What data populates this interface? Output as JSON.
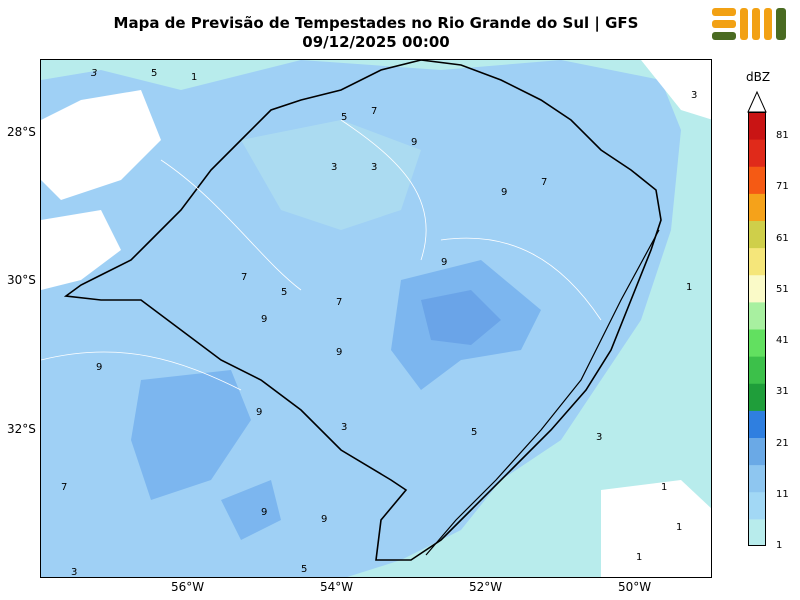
{
  "title": {
    "line1": "Mapa de Previsão de Tempestades no Rio Grande do Sul | GFS",
    "line2": "09/12/2025 00:00"
  },
  "colors": {
    "map_low": "#b8ecec",
    "map_mid": "#9fd0f5",
    "map_high": "#7cb6ef",
    "map_peak": "#6aa4e8",
    "border": "#000000",
    "logo_orange": "#f2a114",
    "logo_green": "#4a6b22"
  },
  "axes": {
    "lat_labels": [
      "28°S",
      "30°S",
      "32°S"
    ],
    "lon_labels": [
      "56°W",
      "54°W",
      "52°W",
      "50°W"
    ]
  },
  "colorbar": {
    "unit": "dBZ",
    "ticks": [
      "81",
      "71",
      "61",
      "51",
      "41",
      "31",
      "21",
      "11",
      "1"
    ],
    "colors": [
      "#b8ecec",
      "#a2d8f5",
      "#8ec6f0",
      "#6aa9e6",
      "#2f7fe0",
      "#1f9e3a",
      "#3cc04a",
      "#62e060",
      "#a8f0a0",
      "#fafac8",
      "#f5e67a",
      "#cfcf4a",
      "#f5a21a",
      "#f55a14",
      "#e02a1a",
      "#c91414"
    ]
  },
  "contour_labels": [
    "1",
    "3",
    "5",
    "7",
    "9"
  ]
}
